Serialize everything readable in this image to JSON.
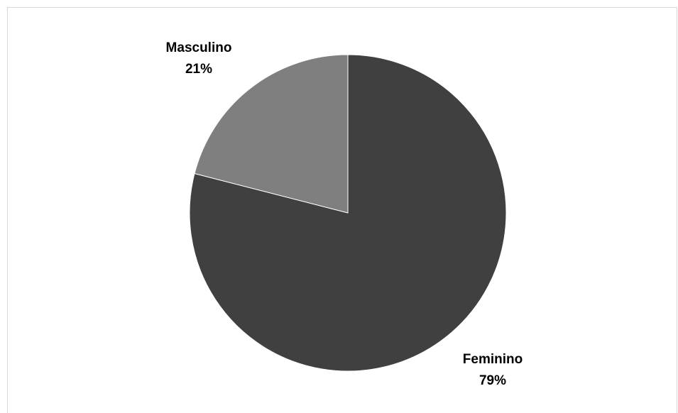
{
  "chart_data": {
    "type": "pie",
    "title": "",
    "slices": [
      {
        "label": "Feminino",
        "value": 79,
        "value_label": "79%",
        "color": "#404040"
      },
      {
        "label": "Masculino",
        "value": 21,
        "value_label": "21%",
        "color": "#7f7f7f"
      }
    ],
    "start": "12 o'clock",
    "direction": "clockwise",
    "legend": "none",
    "data_labels": "category name and percentage, outside slices"
  }
}
